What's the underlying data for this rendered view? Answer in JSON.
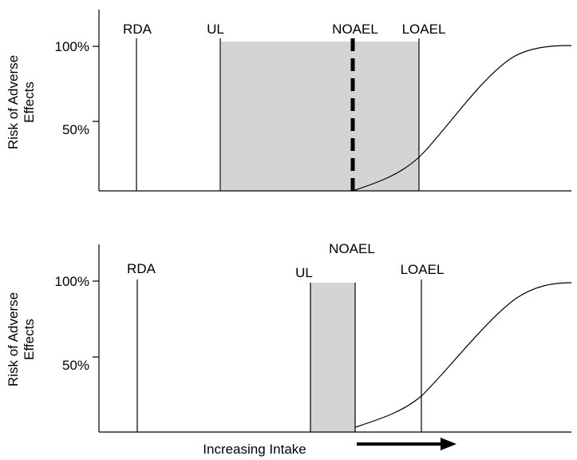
{
  "chart_data": [
    {
      "type": "line",
      "ylabel_lines": [
        "Risk of Adverse",
        "Effects"
      ],
      "y_ticks": [
        "100%",
        "50%"
      ],
      "markers": {
        "rda": "RDA",
        "ul": "UL",
        "noael": "NOAEL",
        "loael": "LOAEL"
      },
      "shaded_region": "UL to LOAEL"
    },
    {
      "type": "line",
      "ylabel_lines": [
        "Risk of Adverse",
        "Effects"
      ],
      "y_ticks": [
        "100%",
        "50%"
      ],
      "markers": {
        "rda": "RDA",
        "ul": "UL",
        "noael": "NOAEL",
        "loael": "LOAEL"
      },
      "shaded_region": "UL to NOAEL",
      "xlabel": "Increasing Intake"
    }
  ],
  "colors": {
    "shade": "#d4d4d4",
    "line": "#000000"
  }
}
